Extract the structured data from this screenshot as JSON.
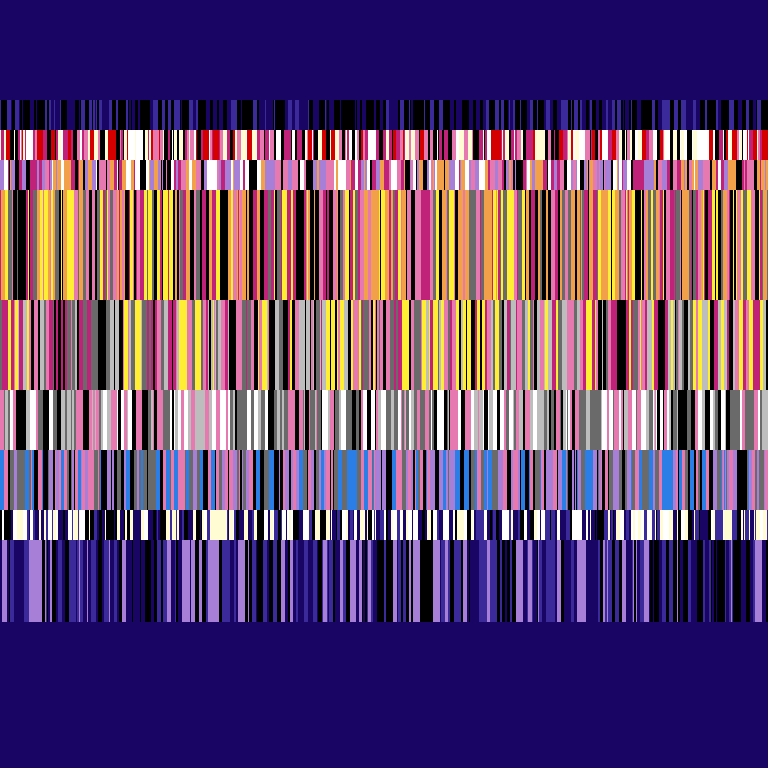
{
  "background": "#190563",
  "palette": {
    "black": "#000000",
    "cream": "#fffbd2",
    "red": "#d40000",
    "pink": "#e67ab0",
    "magenta": "#c0227a",
    "orange": "#f2a04a",
    "yellow": "#ffee33",
    "gray": "#6a6a6a",
    "lightgray": "#bdbdbd",
    "white": "#ffffff",
    "blue": "#2a7ee6",
    "lavender": "#a77fd6",
    "indigo": "#3a2a9a",
    "navy": "#190563"
  },
  "bands": [
    {
      "name": "black-top-band",
      "colors": [
        "black",
        "navy",
        "indigo",
        "black"
      ]
    },
    {
      "name": "cream-red-band",
      "colors": [
        "cream",
        "red",
        "pink",
        "black",
        "magenta",
        "white"
      ]
    },
    {
      "name": "pink-band",
      "colors": [
        "pink",
        "magenta",
        "black",
        "orange",
        "white",
        "lavender"
      ]
    },
    {
      "name": "orange-pink-band",
      "colors": [
        "orange",
        "pink",
        "black",
        "magenta",
        "yellow",
        "gray"
      ]
    },
    {
      "name": "gray-pink-band",
      "colors": [
        "gray",
        "pink",
        "black",
        "yellow",
        "magenta",
        "lightgray"
      ]
    },
    {
      "name": "gray-white-band",
      "colors": [
        "gray",
        "white",
        "black",
        "lightgray",
        "pink"
      ]
    },
    {
      "name": "blue-pink-band",
      "colors": [
        "blue",
        "pink",
        "black",
        "lavender",
        "gray"
      ]
    },
    {
      "name": "cream-navy-band",
      "colors": [
        "cream",
        "navy",
        "black",
        "indigo",
        "white"
      ]
    },
    {
      "name": "dark-navy-band",
      "colors": [
        "navy",
        "black",
        "indigo",
        "lavender"
      ]
    }
  ],
  "garble_text": ""
}
